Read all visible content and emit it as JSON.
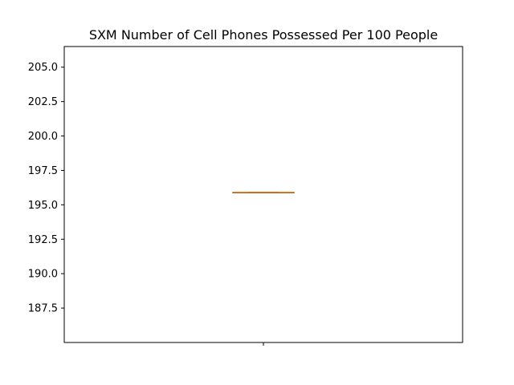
{
  "chart_data": {
    "type": "box",
    "title": "SXM Number of Cell Phones Possessed Per 100 People",
    "xlabel": "",
    "ylabel": "",
    "ylim": [
      185.0,
      206.5
    ],
    "yticks": [
      187.5,
      190.0,
      192.5,
      195.0,
      197.5,
      200.0,
      202.5,
      205.0
    ],
    "ytick_labels": [
      "187.5",
      "190.0",
      "192.5",
      "195.0",
      "197.5",
      "200.0",
      "202.5",
      "205.0"
    ],
    "categories": [
      ""
    ],
    "boxes": [
      {
        "min": 195.9,
        "q1": 195.9,
        "median": 195.9,
        "q3": 195.9,
        "max": 195.9
      }
    ],
    "colors": {
      "box": "#000000",
      "median": "#ff7f0e",
      "axes": "#000000"
    },
    "grid": false
  }
}
